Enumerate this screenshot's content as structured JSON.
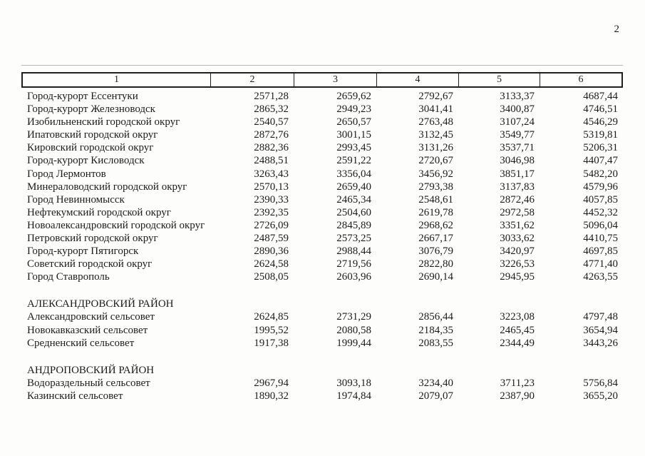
{
  "page_number": "2",
  "table": {
    "columns": [
      "1",
      "2",
      "3",
      "4",
      "5",
      "6"
    ],
    "groups": [
      {
        "title": "",
        "rows": [
          {
            "name": "Город-курорт Ессентуки",
            "v": [
              "2571,28",
              "2659,62",
              "2792,67",
              "3133,37",
              "4687,44"
            ]
          },
          {
            "name": "Город-курорт Железноводск",
            "v": [
              "2865,32",
              "2949,23",
              "3041,41",
              "3400,87",
              "4746,51"
            ]
          },
          {
            "name": "Изобильненский городской округ",
            "v": [
              "2540,57",
              "2650,57",
              "2763,48",
              "3107,24",
              "4546,29"
            ]
          },
          {
            "name": "Ипатовский городской округ",
            "v": [
              "2872,76",
              "3001,15",
              "3132,45",
              "3549,77",
              "5319,81"
            ]
          },
          {
            "name": "Кировский городской округ",
            "v": [
              "2882,36",
              "2993,45",
              "3131,26",
              "3537,71",
              "5206,31"
            ]
          },
          {
            "name": "Город-курорт Кисловодск",
            "v": [
              "2488,51",
              "2591,22",
              "2720,67",
              "3046,98",
              "4407,47"
            ]
          },
          {
            "name": "Город Лермонтов",
            "v": [
              "3263,43",
              "3356,04",
              "3456,92",
              "3851,17",
              "5482,20"
            ]
          },
          {
            "name": "Минераловодский городской округ",
            "v": [
              "2570,13",
              "2659,40",
              "2793,38",
              "3137,83",
              "4579,96"
            ]
          },
          {
            "name": "Город Невинномысск",
            "v": [
              "2390,33",
              "2465,34",
              "2548,61",
              "2872,46",
              "4057,85"
            ]
          },
          {
            "name": "Нефтекумский городской округ",
            "v": [
              "2392,35",
              "2504,60",
              "2619,78",
              "2972,58",
              "4452,32"
            ]
          },
          {
            "name": "Новоалександровский городской округ",
            "v": [
              "2726,09",
              "2845,89",
              "2968,62",
              "3351,62",
              "5096,04"
            ]
          },
          {
            "name": "Петровский городской округ",
            "v": [
              "2487,59",
              "2573,25",
              "2667,17",
              "3033,62",
              "4410,75"
            ]
          },
          {
            "name": "Город-курорт Пятигорск",
            "v": [
              "2890,36",
              "2988,44",
              "3076,79",
              "3420,97",
              "4697,85"
            ]
          },
          {
            "name": "Советский городской округ",
            "v": [
              "2624,58",
              "2719,56",
              "2822,80",
              "3226,53",
              "4771,40"
            ]
          },
          {
            "name": "Город Ставрополь",
            "v": [
              "2508,05",
              "2603,96",
              "2690,14",
              "2945,95",
              "4263,55"
            ]
          }
        ]
      },
      {
        "title": "АЛЕКСАНДРОВСКИЙ РАЙОН",
        "rows": [
          {
            "name": "Александровский сельсовет",
            "v": [
              "2624,85",
              "2731,29",
              "2856,44",
              "3223,08",
              "4797,48"
            ]
          },
          {
            "name": "Новокавказский сельсовет",
            "v": [
              "1995,52",
              "2080,58",
              "2184,35",
              "2465,45",
              "3654,94"
            ]
          },
          {
            "name": "Средненский сельсовет",
            "v": [
              "1917,38",
              "1999,44",
              "2083,55",
              "2344,49",
              "3443,26"
            ]
          }
        ]
      },
      {
        "title": "АНДРОПОВСКИЙ РАЙОН",
        "rows": [
          {
            "name": "Водораздельный сельсовет",
            "v": [
              "2967,94",
              "3093,18",
              "3234,40",
              "3711,23",
              "5756,84"
            ]
          },
          {
            "name": "Казинский сельсовет",
            "v": [
              "1890,32",
              "1974,84",
              "2079,07",
              "2387,90",
              "3655,20"
            ]
          }
        ]
      }
    ]
  }
}
